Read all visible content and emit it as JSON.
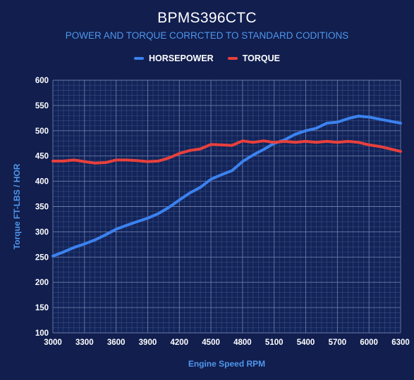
{
  "chart_data": {
    "type": "line",
    "title": "BPMS396CTC",
    "subtitle": "POWER AND TORQUE CORRCTED TO STANDARD CODITIONS",
    "xlabel": "Engine Speed RPM",
    "ylabel": "Torque FT-LBS / HOR",
    "xlim": [
      3000,
      6300
    ],
    "ylim": [
      100,
      600
    ],
    "x_ticks": [
      3000,
      3300,
      3600,
      3900,
      4200,
      4500,
      4800,
      5100,
      5400,
      5700,
      6000,
      6300
    ],
    "y_ticks": [
      100,
      150,
      200,
      250,
      300,
      350,
      400,
      450,
      500,
      550,
      600
    ],
    "grid": true,
    "legend_position": "top-center",
    "x": [
      3000,
      3100,
      3200,
      3300,
      3400,
      3500,
      3600,
      3700,
      3800,
      3900,
      4000,
      4100,
      4200,
      4300,
      4400,
      4500,
      4600,
      4700,
      4800,
      4900,
      5000,
      5100,
      5200,
      5300,
      5400,
      5500,
      5600,
      5700,
      5800,
      5900,
      6000,
      6100,
      6200,
      6300
    ],
    "series": [
      {
        "name": "HORSEPOWER",
        "color": "#3b82f0",
        "values": [
          252,
          260,
          269,
          276,
          284,
          294,
          305,
          313,
          320,
          327,
          336,
          348,
          363,
          377,
          388,
          404,
          413,
          421,
          439,
          452,
          463,
          475,
          482,
          493,
          500,
          505,
          515,
          517,
          524,
          529,
          527,
          523,
          519,
          515
        ]
      },
      {
        "name": "TORQUE",
        "color": "#e8403c",
        "values": [
          440,
          440,
          442,
          439,
          436,
          437,
          442,
          442,
          441,
          439,
          440,
          446,
          455,
          461,
          464,
          473,
          472,
          471,
          480,
          477,
          480,
          477,
          479,
          477,
          479,
          477,
          479,
          477,
          479,
          477,
          472,
          469,
          464,
          459
        ]
      }
    ]
  }
}
